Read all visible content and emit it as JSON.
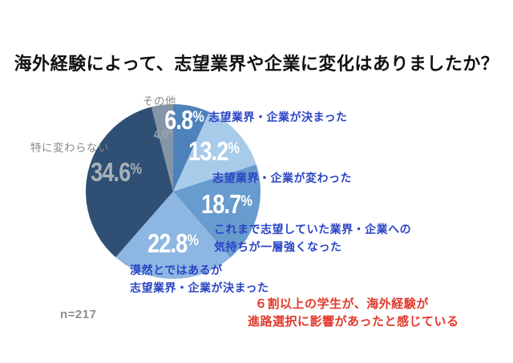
{
  "title": "海外経験によって、志望業界や企業に変化はありましたか？",
  "sample_size_label": "n=217",
  "insight": {
    "line1": "６割以上の学生が、海外経験が",
    "line2": "進路選択に影響があったと感じている",
    "color": "#e0392b"
  },
  "chart_data": {
    "type": "pie",
    "title": "海外経験によって、志望業界や企業に変化はありましたか？",
    "sample_size": 217,
    "start_angle_deg": 0,
    "direction": "clockwise",
    "legend_position": "around-slices",
    "pct_sign": "%",
    "categories": [
      "志望業界・企業が決まった",
      "志望業界・企業が変わった",
      "これまで志望していた業界・企業への気持ちが一層強くなった",
      "漠然とではあるが志望業界・企業が決まった",
      "特に変わらない",
      "その他"
    ],
    "values": [
      6.8,
      13.2,
      18.7,
      22.8,
      34.6,
      4.0
    ],
    "segments": [
      {
        "label": "志望業界・企業が決まった",
        "label_lines": [
          "志望業界・企業が決まった"
        ],
        "value": 6.8,
        "pct_num": "6.8",
        "color": "#4d82ba",
        "label_color": "#2b44c4",
        "pct_text_color": "#ffffff"
      },
      {
        "label": "志望業界・企業が変わった",
        "label_lines": [
          "志望業界・企業が変わった"
        ],
        "value": 13.2,
        "pct_num": "13.2",
        "color": "#a9cbea",
        "label_color": "#2b44c4",
        "pct_text_color": "#ffffff"
      },
      {
        "label": "これまで志望していた業界・企業への気持ちが一層強くなった",
        "label_lines": [
          "これまで志望していた業界・企業への",
          "気持ちが一層強くなった"
        ],
        "value": 18.7,
        "pct_num": "18.7",
        "color": "#689bce",
        "label_color": "#2b44c4",
        "pct_text_color": "#ffffff"
      },
      {
        "label": "漠然とではあるが志望業界・企業が決まった",
        "label_lines": [
          "漠然とではあるが",
          "志望業界・企業が決まった"
        ],
        "value": 22.8,
        "pct_num": "22.8",
        "color": "#8db7e2",
        "label_color": "#2b44c4",
        "pct_text_color": "#ffffff"
      },
      {
        "label": "特に変わらない",
        "label_lines": [
          "特に変わらない"
        ],
        "value": 34.6,
        "pct_num": "34.6",
        "color": "#2f4f74",
        "label_color": "#898989",
        "pct_text_color": "#a9b0b8"
      },
      {
        "label": "その他",
        "label_lines": [
          "その他"
        ],
        "value": 4.0,
        "pct_num": "4.0",
        "color": "#8595a8",
        "label_color": "#898989",
        "pct_text_color": "#9aa4b0"
      }
    ]
  }
}
